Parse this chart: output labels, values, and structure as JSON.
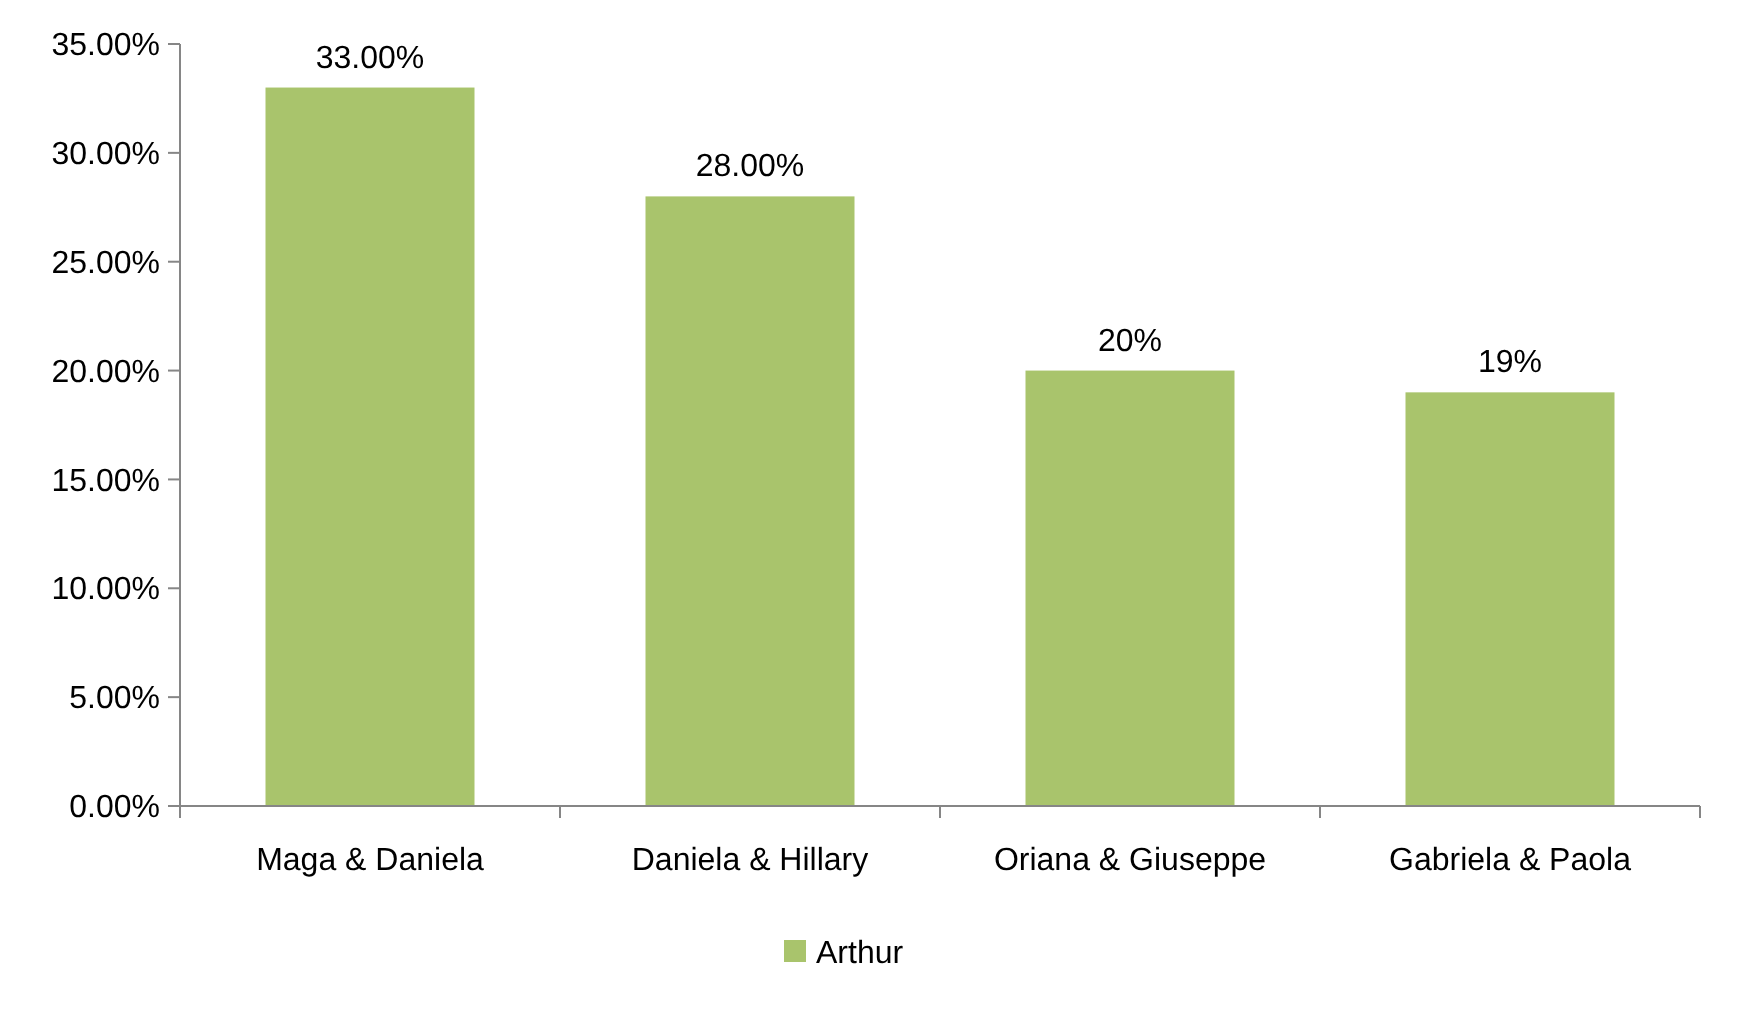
{
  "chart_data": {
    "type": "bar",
    "categories": [
      "Maga & Daniela",
      "Daniela & Hillary",
      "Oriana & Giuseppe",
      "Gabriela & Paola"
    ],
    "series": [
      {
        "name": "Arthur",
        "color": "#a9c46c",
        "values": [
          33,
          28,
          20,
          19
        ],
        "value_labels": [
          "33.00%",
          "28.00%",
          "20%",
          "19%"
        ]
      }
    ],
    "ylim": [
      0,
      35
    ],
    "yticks": [
      {
        "value": 0,
        "label": "0.00%"
      },
      {
        "value": 5,
        "label": "5.00%"
      },
      {
        "value": 10,
        "label": "10.00%"
      },
      {
        "value": 15,
        "label": "15.00%"
      },
      {
        "value": 20,
        "label": "20.00%"
      },
      {
        "value": 25,
        "label": "25.00%"
      },
      {
        "value": 30,
        "label": "30.00%"
      },
      {
        "value": 35,
        "label": "35.00%"
      }
    ],
    "legend": "bottom"
  }
}
